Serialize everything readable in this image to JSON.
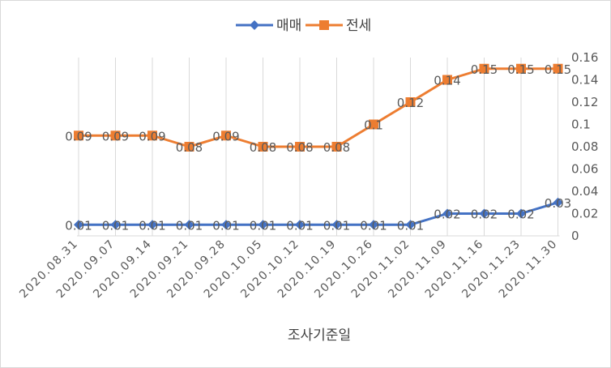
{
  "chart_data": {
    "type": "line",
    "title": "",
    "xlabel": "조사기준일",
    "ylabel": "",
    "ylim": [
      0,
      0.16
    ],
    "y_ticks": [
      0,
      0.02,
      0.04,
      0.06,
      0.08,
      0.1,
      0.12,
      0.14,
      0.16
    ],
    "y_axis_side": "right",
    "grid": "vertical",
    "legend_position": "top",
    "categories": [
      "2020.08.31",
      "2020.09.07",
      "2020.09.14",
      "2020.09.21",
      "2020.09.28",
      "2020.10.05",
      "2020.10.12",
      "2020.10.19",
      "2020.10.26",
      "2020.11.02",
      "2020.11.09",
      "2020.11.16",
      "2020.11.23",
      "2020.11.30"
    ],
    "series": [
      {
        "name": "매매",
        "color": "#4472c4",
        "marker": "diamond",
        "values": [
          0.01,
          0.01,
          0.01,
          0.01,
          0.01,
          0.01,
          0.01,
          0.01,
          0.01,
          0.01,
          0.02,
          0.02,
          0.02,
          0.03
        ]
      },
      {
        "name": "전세",
        "color": "#ed7d31",
        "marker": "square",
        "values": [
          0.09,
          0.09,
          0.09,
          0.08,
          0.09,
          0.08,
          0.08,
          0.08,
          0.1,
          0.12,
          0.14,
          0.15,
          0.15,
          0.15
        ]
      }
    ]
  }
}
